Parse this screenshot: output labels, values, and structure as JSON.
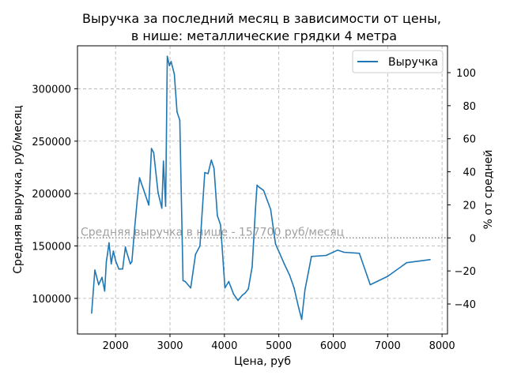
{
  "chart_data": {
    "type": "line",
    "title_line1": "Выручка за последний месяц в зависимости от цены,",
    "title_line2": "в нише: металлические грядки 4 метра",
    "xlabel": "Цена, руб",
    "ylabel": "Средняя выручка, руб/месяц",
    "ylabel_right": "% от средней",
    "xlim": [
      1300,
      8100
    ],
    "ylim": [
      66000,
      341000
    ],
    "x_ticks": [
      2000,
      3000,
      4000,
      5000,
      6000,
      7000,
      8000
    ],
    "y_ticks": [
      100000,
      150000,
      200000,
      250000,
      300000
    ],
    "y2_ticks": [
      -40,
      -20,
      0,
      20,
      40,
      60,
      80,
      100
    ],
    "grid": true,
    "legend_position": "top-right",
    "average": {
      "value": 157700,
      "label": "Средняя выручка в нише - 157700 руб/месяц"
    },
    "colors": {
      "series": "#1f77b4",
      "average_line": "#888888",
      "average_text": "#a0a0a0",
      "grid": "#b0b0b0"
    },
    "series": [
      {
        "name": "Выручка",
        "x": [
          1560,
          1620,
          1690,
          1750,
          1800,
          1830,
          1850,
          1880,
          1920,
          1960,
          2000,
          2060,
          2130,
          2180,
          2200,
          2270,
          2300,
          2350,
          2400,
          2440,
          2500,
          2610,
          2660,
          2700,
          2780,
          2850,
          2880,
          2920,
          2950,
          2990,
          3020,
          3080,
          3130,
          3180,
          3240,
          3280,
          3380,
          3470,
          3550,
          3640,
          3700,
          3760,
          3810,
          3870,
          3930,
          4010,
          4080,
          4170,
          4250,
          4330,
          4380,
          4440,
          4510,
          4570,
          4600,
          4640,
          4720,
          4850,
          4940,
          5100,
          5200,
          5280,
          5370,
          5420,
          5480,
          5600,
          5870,
          6080,
          6200,
          6480,
          6680,
          7000,
          7350,
          7780
        ],
        "values": [
          86000,
          127000,
          113000,
          120000,
          107000,
          135000,
          142000,
          153000,
          133000,
          145000,
          136000,
          128000,
          128000,
          149000,
          145000,
          133000,
          135000,
          167000,
          195000,
          215000,
          206000,
          189000,
          243000,
          239000,
          201000,
          186000,
          231000,
          188000,
          331000,
          322000,
          326000,
          314000,
          278000,
          270000,
          117000,
          116000,
          110000,
          142000,
          150000,
          220000,
          219000,
          232000,
          224000,
          179000,
          170000,
          110000,
          116000,
          104000,
          98000,
          103000,
          105000,
          109000,
          130000,
          185000,
          208000,
          206000,
          203000,
          185000,
          152000,
          133000,
          122000,
          110000,
          90000,
          80000,
          108000,
          140000,
          141000,
          146000,
          144000,
          143000,
          113000,
          121000,
          134000,
          137000
        ]
      }
    ]
  }
}
